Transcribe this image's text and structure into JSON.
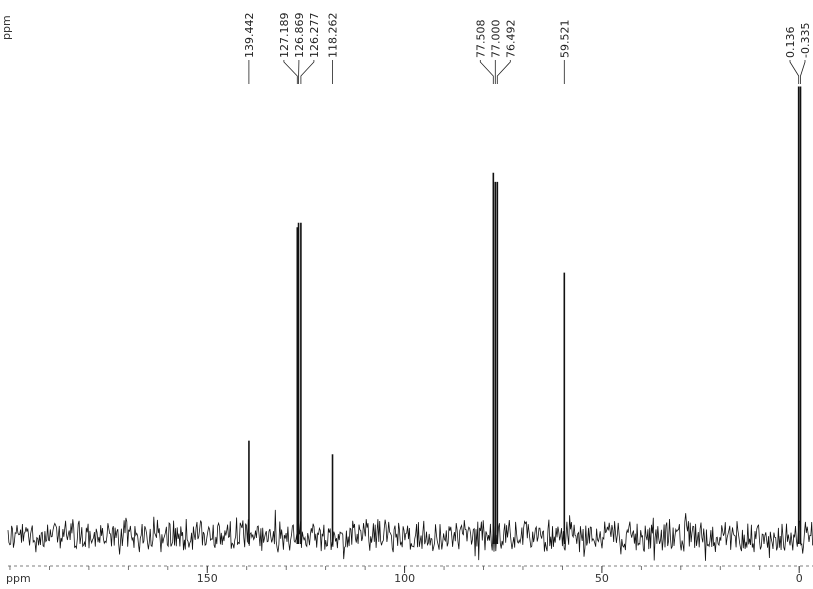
{
  "chart_data": {
    "type": "line",
    "xlabel": "ppm",
    "corner_label": "ppm",
    "xlim": [
      200.5,
      -3.5
    ],
    "x_ticks": [
      150,
      100,
      50,
      0
    ],
    "x_tick_labels": [
      "150",
      "100",
      "50",
      "0"
    ],
    "minor_tick_step": 10,
    "baseline_noise": true,
    "peaks": [
      {
        "x": 139.442,
        "label": "139.442",
        "height": 0.21
      },
      {
        "x": 127.189,
        "label": "127.189",
        "height": 0.68
      },
      {
        "x": 126.869,
        "label": "126.869",
        "height": 0.69
      },
      {
        "x": 126.277,
        "label": "126.277",
        "height": 0.69
      },
      {
        "x": 118.262,
        "label": "118.262",
        "height": 0.18
      },
      {
        "x": 77.508,
        "label": "77.508",
        "height": 0.8
      },
      {
        "x": 77.0,
        "label": "77.000",
        "height": 0.78
      },
      {
        "x": 76.492,
        "label": "76.492",
        "height": 0.78
      },
      {
        "x": 59.521,
        "label": "59.521",
        "height": 0.58
      },
      {
        "x": 0.136,
        "label": "0.136",
        "height": 0.99
      },
      {
        "x": -0.335,
        "label": "-0.335",
        "height": 0.99
      }
    ]
  }
}
